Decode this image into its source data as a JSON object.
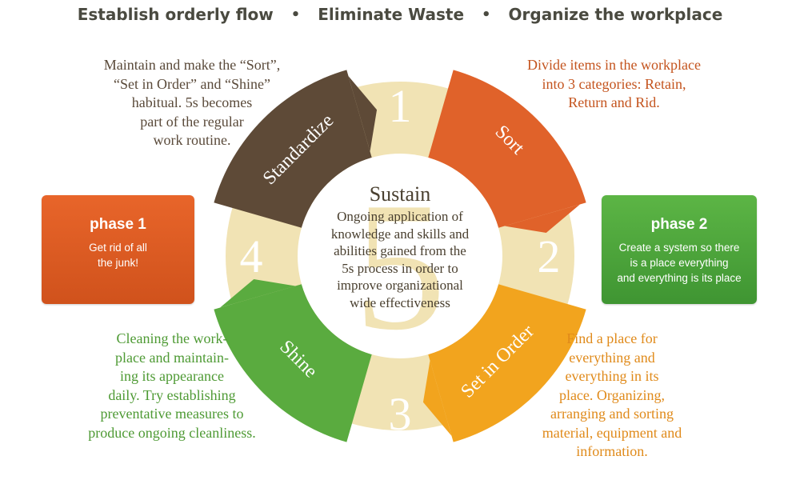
{
  "header": {
    "item1": "Establish orderly flow",
    "item2": "Eliminate Waste",
    "item3": "Organize the workplace",
    "separator": "•"
  },
  "wheel": {
    "numbers": [
      "1",
      "2",
      "3",
      "4",
      "5"
    ],
    "segments": {
      "sort": {
        "label": "Sort",
        "color": "#e0622a"
      },
      "set_in_order": {
        "label": "Set in Order",
        "color": "#f2a41e"
      },
      "shine": {
        "label": "Shine",
        "color": "#5aab3f"
      },
      "standardize": {
        "label": "Standardize",
        "color": "#5e4a37"
      }
    },
    "number_ring_color": "#f1e3b4"
  },
  "sustain": {
    "title": "Sustain",
    "text": "Ongoing application of\nknowledge and skills and\nabilities gained from  the\n5s process in order to\nimprove organizational\nwide effectiveness"
  },
  "descriptions": {
    "standardize": "Maintain and make the “Sort”,\n“Set in Order” and “Shine”\nhabitual. 5s becomes\npart of the regular\nwork routine.",
    "sort": "Divide items in the workplace\ninto 3 categories: Retain,\nReturn and Rid.",
    "shine": "Cleaning the work-\nplace  and maintain-\ning its appearance\ndaily. Try establishing\npreventative measures to\nproduce ongoing cleanliness.",
    "set_in_order": "Find a place for\neverything and\neverything in its\nplace. Organizing,\narranging and sorting\nmaterial, equipment and\ninformation."
  },
  "phase1": {
    "title": "phase 1",
    "text": "Get rid of all\nthe junk!",
    "color": "#e0602a"
  },
  "phase2": {
    "title": "phase 2",
    "text": "Create a system so there\nis a place everything\nand everything is its place",
    "color": "#4ea83a"
  }
}
